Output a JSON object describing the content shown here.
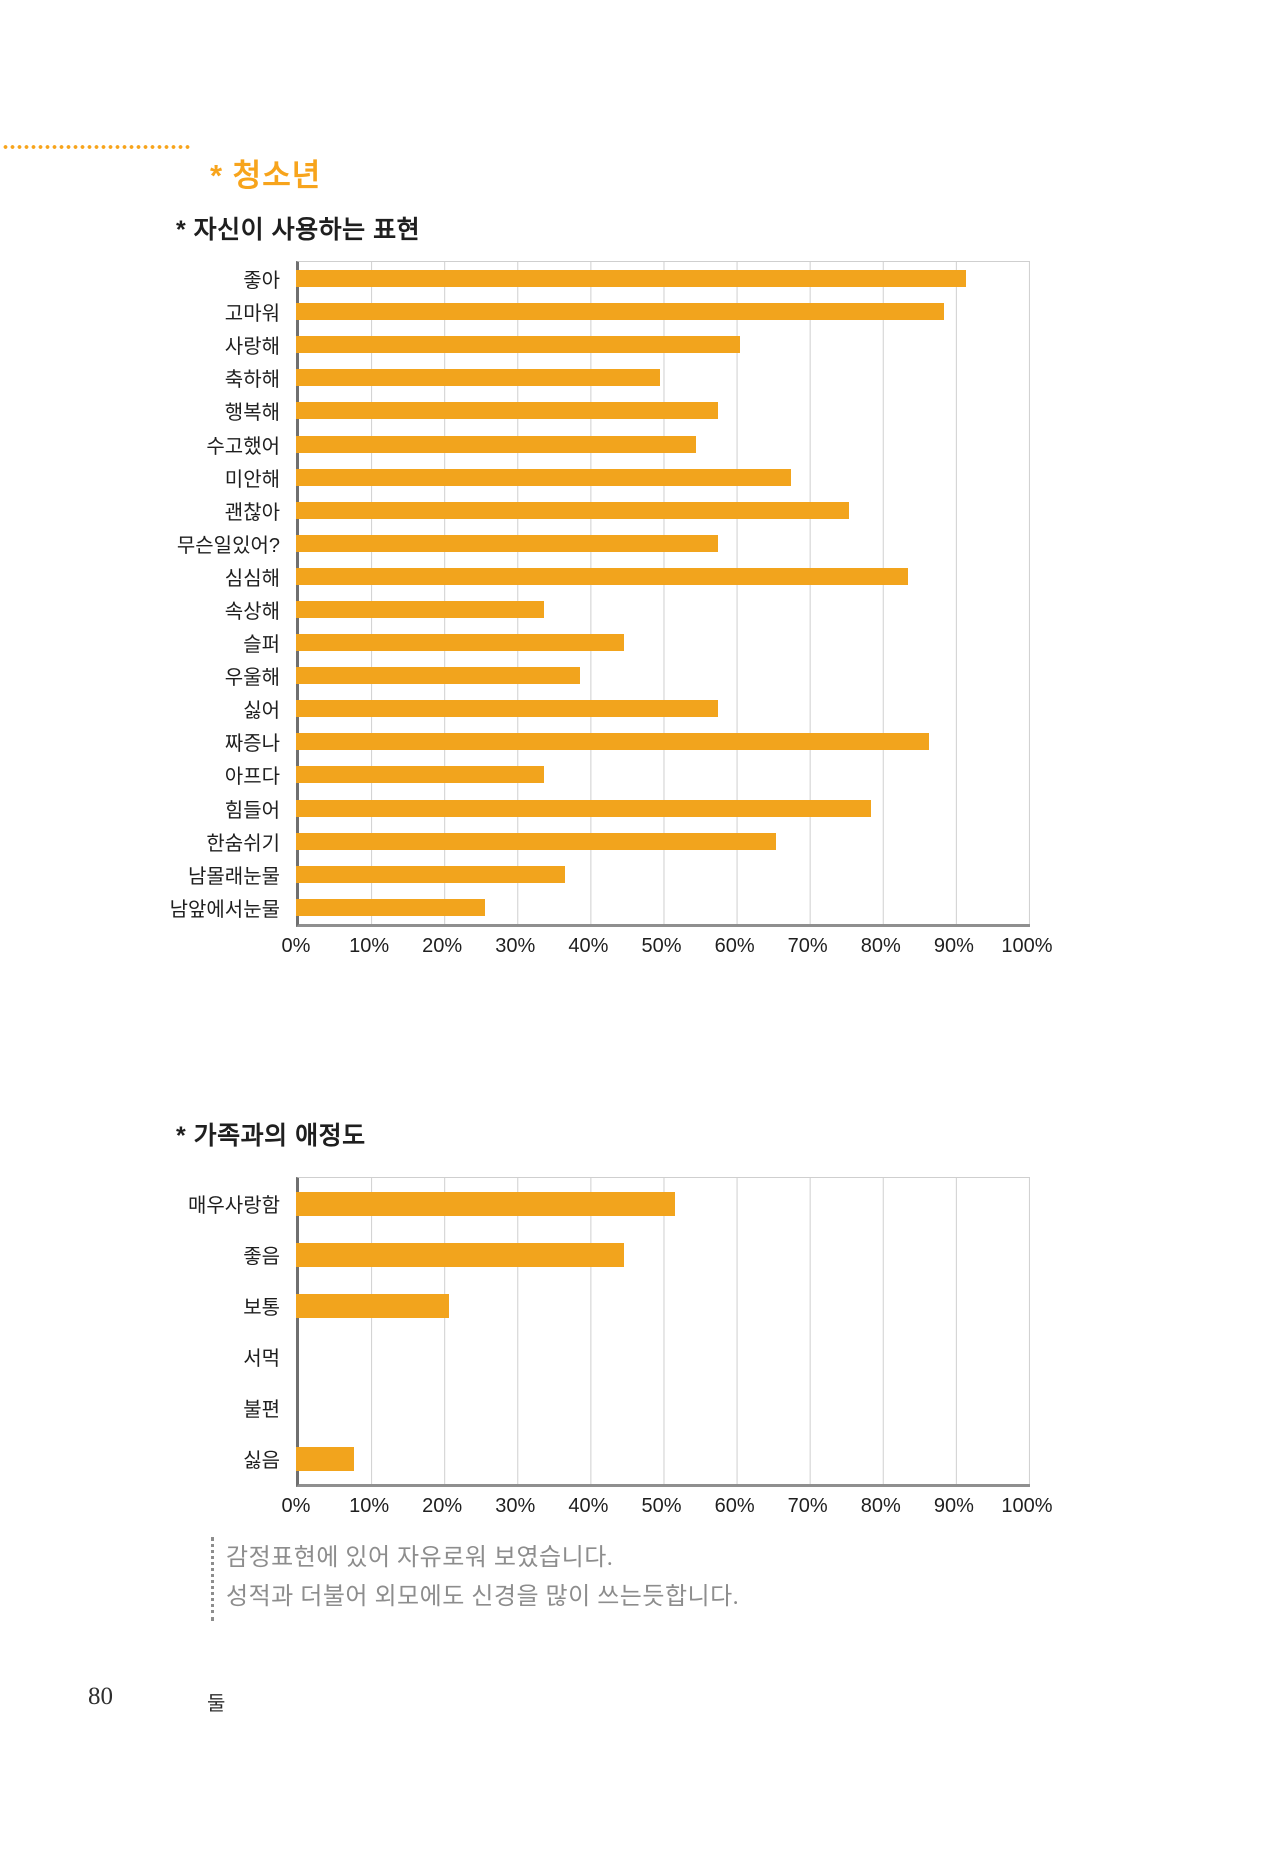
{
  "page": {
    "title": "* 청소년",
    "footer": {
      "page_number": "80",
      "chapter_mark": "둘"
    }
  },
  "colors": {
    "accent_orange": "#F7A41C",
    "bar_orange": "#F2A41D",
    "gridline": "#CFCFCF",
    "axis_dark": "#6F6F6F",
    "axis_gray": "#8F8F8F",
    "label_text": "#1F1F1F",
    "comment_text": "#8D8D8D"
  },
  "chart_data": [
    {
      "type": "bar",
      "orientation": "horizontal",
      "title": "* 자신이 사용하는 표현",
      "categories": [
        "좋아",
        "고마워",
        "사랑해",
        "축하해",
        "행복해",
        "수고했어",
        "미안해",
        "괜찮아",
        "무슨일있어?",
        "심심해",
        "속상해",
        "슬퍼",
        "우울해",
        "싫어",
        "짜증나",
        "아프다",
        "힘들어",
        "한숨쉬기",
        "남몰래눈물",
        "남앞에서눈물"
      ],
      "values": [
        92,
        89,
        61,
        50,
        58,
        55,
        68,
        76,
        58,
        84,
        34,
        45,
        39,
        58,
        87,
        34,
        79,
        66,
        37,
        26
      ],
      "unit": "%",
      "xlim": [
        0,
        100
      ],
      "x_ticks": [
        "0%",
        "10%",
        "20%",
        "30%",
        "40%",
        "50%",
        "60%",
        "70%",
        "80%",
        "90%",
        "100%"
      ],
      "grid": true,
      "legend": false
    },
    {
      "type": "bar",
      "orientation": "horizontal",
      "title": "* 가족과의 애정도",
      "categories": [
        "매우사랑함",
        "좋음",
        "보통",
        "서먹",
        "불편",
        "싫음"
      ],
      "values": [
        52,
        45,
        21,
        0,
        0,
        8
      ],
      "unit": "%",
      "xlim": [
        0,
        100
      ],
      "x_ticks": [
        "0%",
        "10%",
        "20%",
        "30%",
        "40%",
        "50%",
        "60%",
        "70%",
        "80%",
        "90%",
        "100%"
      ],
      "grid": true,
      "legend": false
    }
  ],
  "comments": {
    "line1": "감정표현에 있어 자유로워 보였습니다.",
    "line2": "성적과 더불어 외모에도 신경을 많이 쓰는듯합니다."
  }
}
